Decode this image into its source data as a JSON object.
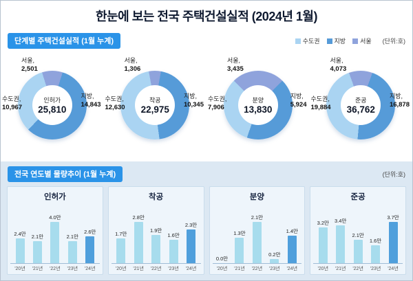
{
  "title": "한눈에 보는 전국 주택건설실적 (2024년 1월)",
  "section1": {
    "badge": "단계별 주택건설실적 (1월 누계)",
    "unit": "(단위:호)",
    "legend": [
      {
        "label": "수도권",
        "color": "#aad4f2"
      },
      {
        "label": "지방",
        "color": "#569bd8"
      },
      {
        "label": "서울",
        "color": "#8fa3dc"
      }
    ]
  },
  "section2": {
    "badge": "전국 연도별 물량추이 (1월 누계)",
    "unit": "(단위:호)"
  },
  "colors": {
    "seoul": "#8fa3dc",
    "jibang": "#569bd8",
    "sudogwon": "#aad4f2",
    "bar": "#a7dced",
    "bar_highlight": "#4f9fdc"
  },
  "chart_data": [
    {
      "type": "pie",
      "title": "단계별 주택건설실적 (1월 누계)",
      "unit": "호",
      "segment_labels": {
        "seoul": "서울,",
        "sudogwon": "수도권,",
        "jibang": "지방,"
      },
      "donuts": [
        {
          "name": "인허가",
          "total": 25810,
          "seoul": 2501,
          "sudogwon": 10967,
          "jibang": 14843
        },
        {
          "name": "착공",
          "total": 22975,
          "seoul": 1306,
          "sudogwon": 12630,
          "jibang": 10345
        },
        {
          "name": "분양",
          "total": 13830,
          "seoul": 3435,
          "sudogwon": 7906,
          "jibang": 5924
        },
        {
          "name": "준공",
          "total": 36762,
          "seoul": 4073,
          "sudogwon": 19884,
          "jibang": 16878
        }
      ]
    },
    {
      "type": "bar",
      "title": "전국 연도별 물량추이 (1월 누계)",
      "unit": "만 호",
      "value_suffix": "만",
      "categories": [
        "'20년",
        "'21년",
        "'22년",
        "'23년",
        "'24년"
      ],
      "series": [
        {
          "name": "인허가",
          "values": [
            2.4,
            2.1,
            4.0,
            2.1,
            2.6
          ]
        },
        {
          "name": "착공",
          "values": [
            1.7,
            2.8,
            1.9,
            1.6,
            2.3
          ]
        },
        {
          "name": "분양",
          "values": [
            0.0,
            1.3,
            2.1,
            0.2,
            1.4
          ]
        },
        {
          "name": "준공",
          "values": [
            3.2,
            3.4,
            2.1,
            1.6,
            3.7
          ]
        }
      ]
    }
  ]
}
